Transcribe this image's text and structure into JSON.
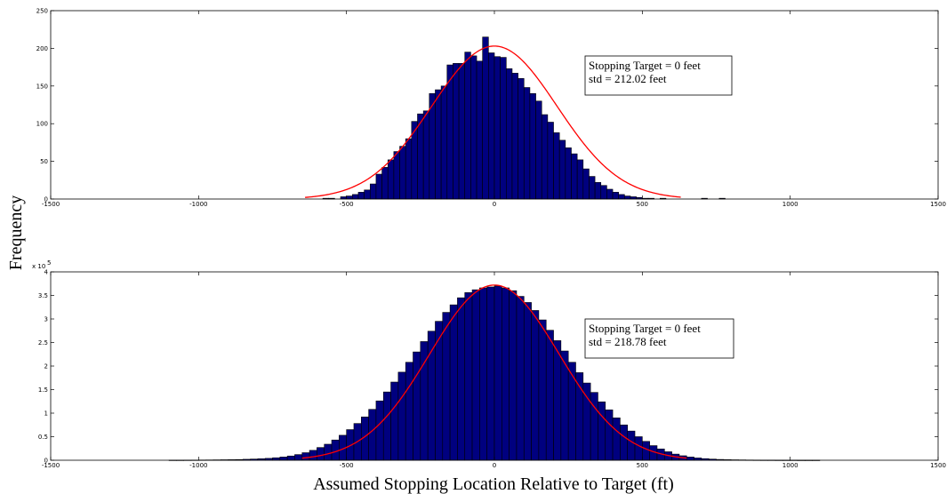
{
  "figure": {
    "ylabel": "Frequency",
    "xlabel": "Assumed Stopping Location Relative to Target (ft)"
  },
  "colors": {
    "bar_fill": "#00007f",
    "bar_edge": "#000000",
    "fit_curve": "#ff0000",
    "axes": "#000000"
  },
  "chart_data": [
    {
      "type": "bar",
      "bin_width": 20,
      "bin_centers": [
        -650,
        -630,
        -610,
        -590,
        -570,
        -550,
        -530,
        -510,
        -490,
        -470,
        -450,
        -430,
        -410,
        -390,
        -370,
        -350,
        -330,
        -310,
        -290,
        -270,
        -250,
        -230,
        -210,
        -190,
        -170,
        -150,
        -130,
        -110,
        -90,
        -70,
        -50,
        -30,
        -10,
        10,
        30,
        50,
        70,
        90,
        110,
        130,
        150,
        170,
        190,
        210,
        230,
        250,
        270,
        290,
        310,
        330,
        350,
        370,
        390,
        410,
        430,
        450,
        470,
        490,
        510,
        530,
        550,
        570,
        590,
        610,
        630,
        650,
        670,
        690,
        710,
        730,
        750,
        770
      ],
      "values": [
        0,
        0,
        0,
        0,
        1,
        1,
        0,
        3,
        4,
        6,
        9,
        12,
        20,
        33,
        42,
        52,
        63,
        70,
        80,
        103,
        113,
        117,
        140,
        145,
        150,
        178,
        180,
        180,
        195,
        190,
        183,
        215,
        194,
        189,
        188,
        173,
        167,
        160,
        148,
        140,
        130,
        112,
        102,
        88,
        78,
        68,
        60,
        52,
        40,
        30,
        22,
        18,
        13,
        9,
        6,
        4,
        3,
        2,
        1,
        1,
        0,
        1,
        0,
        0,
        0,
        0,
        0,
        0,
        1,
        0,
        0,
        1
      ],
      "fit": {
        "type": "normal",
        "mean": 0,
        "std": 212.02,
        "peak": 203,
        "x_range": [
          -640,
          630
        ]
      },
      "xlim": [
        -1500,
        1500
      ],
      "ylim": [
        0,
        250
      ],
      "xticks": [
        -1500,
        -1000,
        -500,
        0,
        500,
        1000,
        1500
      ],
      "yticks": [
        0,
        50,
        100,
        150,
        200,
        250
      ],
      "xtick_labels": [
        "-1500",
        "-1000",
        "-500",
        "0",
        "500",
        "1000",
        "1500"
      ],
      "ytick_labels": [
        "0",
        "50",
        "100",
        "150",
        "200",
        "250"
      ],
      "exponent_label": "",
      "annotation": [
        "Stopping Target = 0 feet",
        "std = 212.02 feet"
      ]
    },
    {
      "type": "bar",
      "bin_width": 25,
      "bin_centers": [
        -1087.5,
        -1062.5,
        -1037.5,
        -1012.5,
        -987.5,
        -962.5,
        -937.5,
        -912.5,
        -887.5,
        -862.5,
        -837.5,
        -812.5,
        -787.5,
        -762.5,
        -737.5,
        -712.5,
        -687.5,
        -662.5,
        -637.5,
        -612.5,
        -587.5,
        -562.5,
        -537.5,
        -512.5,
        -487.5,
        -462.5,
        -437.5,
        -412.5,
        -387.5,
        -362.5,
        -337.5,
        -312.5,
        -287.5,
        -262.5,
        -237.5,
        -212.5,
        -187.5,
        -162.5,
        -137.5,
        -112.5,
        -87.5,
        -62.5,
        -37.5,
        -12.5,
        12.5,
        37.5,
        62.5,
        87.5,
        112.5,
        137.5,
        162.5,
        187.5,
        212.5,
        237.5,
        262.5,
        287.5,
        312.5,
        337.5,
        362.5,
        387.5,
        412.5,
        437.5,
        462.5,
        487.5,
        512.5,
        537.5,
        562.5,
        587.5,
        612.5,
        637.5,
        662.5,
        687.5,
        712.5,
        737.5,
        762.5,
        787.5,
        812.5,
        837.5,
        862.5,
        887.5,
        912.5,
        937.5,
        962.5,
        987.5,
        1012.5,
        1037.5,
        1062.5,
        1087.5
      ],
      "values": [
        0.002,
        0.002,
        0.003,
        0.004,
        0.005,
        0.006,
        0.008,
        0.01,
        0.012,
        0.015,
        0.02,
        0.025,
        0.032,
        0.04,
        0.052,
        0.068,
        0.09,
        0.12,
        0.16,
        0.21,
        0.27,
        0.34,
        0.43,
        0.53,
        0.65,
        0.78,
        0.92,
        1.08,
        1.26,
        1.45,
        1.66,
        1.87,
        2.08,
        2.3,
        2.52,
        2.74,
        2.95,
        3.14,
        3.3,
        3.45,
        3.56,
        3.62,
        3.66,
        3.68,
        3.7,
        3.66,
        3.6,
        3.48,
        3.35,
        3.18,
        2.98,
        2.76,
        2.54,
        2.32,
        2.08,
        1.86,
        1.64,
        1.44,
        1.24,
        1.07,
        0.9,
        0.75,
        0.62,
        0.5,
        0.4,
        0.31,
        0.24,
        0.18,
        0.13,
        0.095,
        0.068,
        0.048,
        0.034,
        0.024,
        0.017,
        0.012,
        0.009,
        0.007,
        0.005,
        0.004,
        0.003,
        0.003,
        0.002,
        0.002,
        0.002,
        0.001,
        0.001,
        0.001
      ],
      "fit": {
        "type": "normal",
        "mean": 0,
        "std": 218.78,
        "peak": 3.72,
        "x_range": [
          -650,
          650
        ]
      },
      "xlim": [
        -1500,
        1500
      ],
      "ylim": [
        0,
        4
      ],
      "xticks": [
        -1500,
        -1000,
        -500,
        0,
        500,
        1000,
        1500
      ],
      "yticks": [
        0,
        0.5,
        1,
        1.5,
        2,
        2.5,
        3,
        3.5,
        4
      ],
      "xtick_labels": [
        "-1500",
        "-1000",
        "-500",
        "0",
        "500",
        "1000",
        "1500"
      ],
      "ytick_labels": [
        "0",
        "0.5",
        "1",
        "1.5",
        "2",
        "2.5",
        "3",
        "3.5",
        "4"
      ],
      "exponent_label": "x 10",
      "exponent_power": "5",
      "annotation": [
        "Stopping Target = 0 feet",
        "std = 218.78 feet"
      ]
    }
  ]
}
